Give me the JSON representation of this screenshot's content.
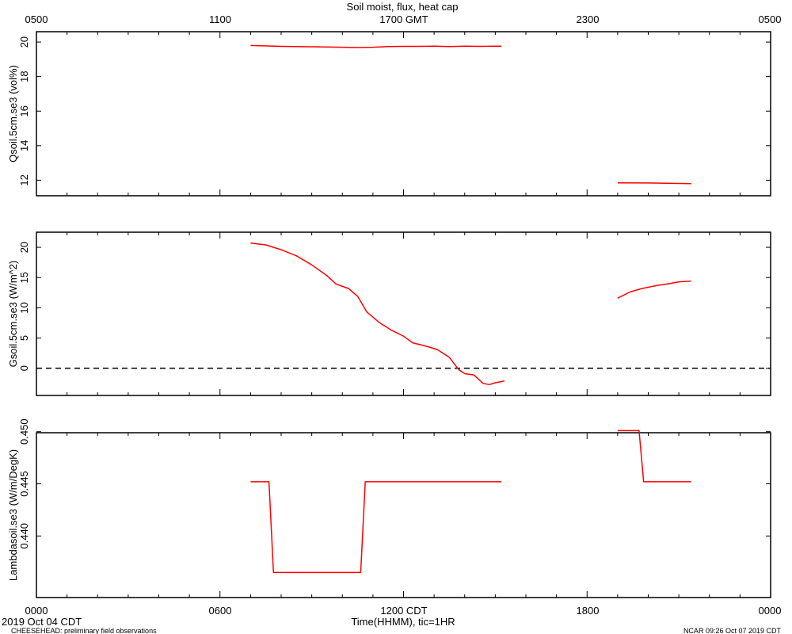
{
  "header": {
    "title": "Soil moist, flux, heat cap",
    "top_axis_labels": [
      "0500",
      "1100",
      "1700 GMT",
      "2300",
      "0500"
    ]
  },
  "footer": {
    "bottom_axis_labels": [
      "0000",
      "0600",
      "1200 CDT",
      "1800",
      "0000"
    ],
    "xlabel": "Time(HHMM), tic=1HR",
    "date": "2019 Oct 04 CDT",
    "project_note": "CHEESEHEAD: preliminary field observations",
    "credit": "NCAR 09:26 Oct 07 2019 CDT"
  },
  "colors": {
    "series": "#ff0000",
    "axis": "#000000"
  },
  "chart_data": [
    {
      "type": "line",
      "ylabel": "Qsoil.5cm.se3 (vol%)",
      "xlim": [
        0,
        24
      ],
      "ylim": [
        11.1,
        20.6
      ],
      "yticks": [
        12,
        14,
        16,
        18,
        20
      ],
      "ytick_labels": [
        "12",
        "14",
        "16",
        "18",
        "20"
      ],
      "grid": false,
      "segments": [
        [
          [
            7.0,
            19.8
          ],
          [
            8.0,
            19.75
          ],
          [
            9.0,
            19.73
          ],
          [
            10.0,
            19.7
          ],
          [
            10.5,
            19.68
          ],
          [
            11.0,
            19.7
          ],
          [
            11.5,
            19.74
          ],
          [
            12.0,
            19.75
          ],
          [
            12.5,
            19.75
          ],
          [
            13.0,
            19.76
          ],
          [
            13.5,
            19.74
          ],
          [
            14.0,
            19.76
          ],
          [
            14.5,
            19.75
          ],
          [
            15.0,
            19.76
          ],
          [
            15.2,
            19.76
          ]
        ],
        [
          [
            19.0,
            11.85
          ],
          [
            20.0,
            11.84
          ],
          [
            21.0,
            11.81
          ],
          [
            21.4,
            11.8
          ]
        ]
      ]
    },
    {
      "type": "line",
      "ylabel": "Gsoil.5cm.se3 (W/m^2)",
      "xlim": [
        0,
        24
      ],
      "ylim": [
        -4.5,
        22.5
      ],
      "yticks": [
        0,
        5,
        10,
        15,
        20
      ],
      "ytick_labels": [
        "0",
        "5",
        "10",
        "15",
        "20"
      ],
      "zero_line": 0,
      "grid": false,
      "segments": [
        [
          [
            7.0,
            20.7
          ],
          [
            7.5,
            20.4
          ],
          [
            8.0,
            19.6
          ],
          [
            8.5,
            18.6
          ],
          [
            9.0,
            17.1
          ],
          [
            9.5,
            15.3
          ],
          [
            9.8,
            13.9
          ],
          [
            10.2,
            13.2
          ],
          [
            10.5,
            11.9
          ],
          [
            10.8,
            9.3
          ],
          [
            11.2,
            7.6
          ],
          [
            11.6,
            6.3
          ],
          [
            12.0,
            5.3
          ],
          [
            12.3,
            4.2
          ],
          [
            12.7,
            3.7
          ],
          [
            13.1,
            3.1
          ],
          [
            13.5,
            1.8
          ],
          [
            13.8,
            -0.2
          ],
          [
            14.0,
            -0.9
          ],
          [
            14.3,
            -1.1
          ],
          [
            14.6,
            -2.5
          ],
          [
            14.8,
            -2.7
          ],
          [
            15.0,
            -2.4
          ],
          [
            15.3,
            -2.1
          ]
        ],
        [
          [
            19.0,
            11.6
          ],
          [
            19.4,
            12.6
          ],
          [
            19.8,
            13.2
          ],
          [
            20.3,
            13.7
          ],
          [
            20.7,
            14.0
          ],
          [
            21.0,
            14.3
          ],
          [
            21.4,
            14.4
          ]
        ]
      ]
    },
    {
      "type": "line",
      "ylabel": "Lambdasoil.se3 (W/m/DegK)",
      "xlim": [
        0,
        24
      ],
      "ylim": [
        0.4341,
        0.4499
      ],
      "yticks": [
        0.44,
        0.445,
        0.45
      ],
      "ytick_labels": [
        "0.440",
        "0.445",
        "0.450"
      ],
      "grid": false,
      "segments": [
        [
          [
            7.0,
            0.4452
          ],
          [
            7.6,
            0.4452
          ],
          [
            7.75,
            0.4365
          ],
          [
            10.6,
            0.4365
          ],
          [
            10.75,
            0.4452
          ],
          [
            15.2,
            0.4452
          ]
        ],
        [
          [
            19.0,
            0.4501
          ],
          [
            19.7,
            0.4501
          ],
          [
            19.85,
            0.4452
          ],
          [
            21.4,
            0.4452
          ]
        ]
      ]
    }
  ]
}
